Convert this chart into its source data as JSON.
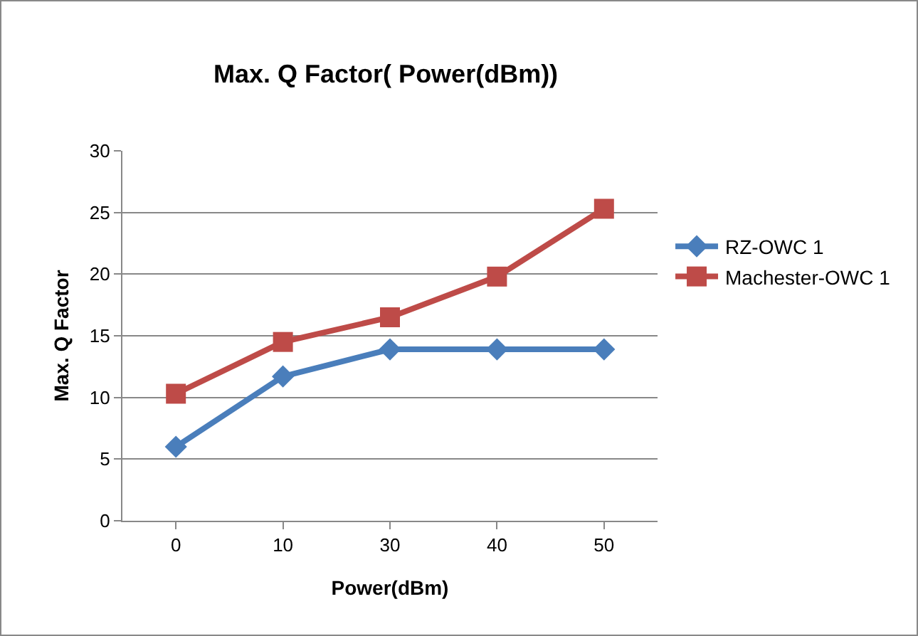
{
  "chart_data": {
    "type": "line",
    "title": "Max. Q Factor( Power(dBm))",
    "xlabel": "Power(dBm)",
    "ylabel": "Max. Q Factor",
    "categories": [
      "0",
      "10",
      "30",
      "40",
      "50"
    ],
    "series": [
      {
        "name": "RZ-OWC 1",
        "color": "#4a7ebb",
        "marker": "diamond",
        "values": [
          6,
          11.7,
          13.9,
          13.9,
          13.9
        ]
      },
      {
        "name": "Machester-OWC 1",
        "color": "#be4b48",
        "marker": "square",
        "values": [
          10.3,
          14.5,
          16.5,
          19.8,
          25.3
        ]
      }
    ],
    "ylim": [
      0,
      30
    ],
    "yticks": [
      0,
      5,
      10,
      15,
      20,
      25,
      30
    ],
    "grid": "y",
    "legend": "right",
    "line_style": "solid"
  }
}
